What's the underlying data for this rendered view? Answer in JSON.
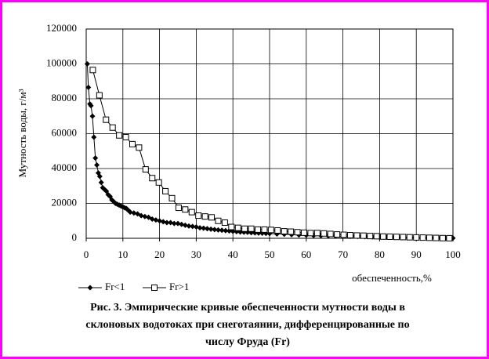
{
  "chart_data": {
    "type": "line",
    "ylabel": "Мутность воды, г/м³",
    "xlabel": "обеспеченность,%",
    "caption": [
      "Рис. 3. Эмпирические кривые обеспеченности мутности воды в",
      "склоновых водотоках при снеготаянии, дифференцированные по",
      "числу Фруда (Fr)"
    ],
    "xlim": [
      0,
      100
    ],
    "xticks": [
      0,
      10,
      20,
      30,
      40,
      50,
      60,
      70,
      80,
      90,
      100
    ],
    "ylim": [
      0,
      120000
    ],
    "yticks": [
      0,
      20000,
      40000,
      60000,
      80000,
      100000,
      120000
    ],
    "grid": true,
    "series": [
      {
        "name": "Fr<1",
        "color": "#000000",
        "marker": "diamond",
        "x": [
          0.3,
          0.6,
          1,
          1.3,
          1.7,
          2.1,
          2.5,
          2.9,
          3.3,
          3.7,
          4.1,
          4.5,
          5,
          5.5,
          6,
          6.5,
          7,
          7.5,
          8,
          8.5,
          9,
          9.5,
          10,
          10.5,
          11,
          11.5,
          12,
          13,
          14,
          15,
          16,
          17,
          18,
          19,
          20,
          21,
          22,
          23,
          24,
          25,
          26,
          27,
          28,
          29,
          30,
          31,
          32,
          33,
          34,
          35,
          36,
          37,
          38,
          39,
          40,
          41,
          42,
          43,
          44,
          45,
          46,
          47,
          48,
          49,
          50,
          52,
          54,
          56,
          58,
          60,
          62,
          64,
          66,
          68,
          70,
          72,
          74,
          76,
          78,
          80,
          82,
          84,
          86,
          88,
          90,
          92,
          94,
          96,
          98,
          100
        ],
        "values": [
          100000,
          86500,
          77000,
          76000,
          70000,
          58000,
          46000,
          42000,
          37500,
          35500,
          32000,
          29000,
          28000,
          27000,
          25000,
          24000,
          22000,
          21000,
          20000,
          19500,
          19000,
          18500,
          18000,
          17500,
          17000,
          16000,
          15000,
          14500,
          14000,
          13000,
          12500,
          12000,
          11000,
          10500,
          10000,
          9500,
          9000,
          9000,
          8500,
          8500,
          8000,
          7500,
          7000,
          6800,
          6500,
          6000,
          5800,
          5500,
          5200,
          5000,
          4800,
          4600,
          4400,
          4200,
          4000,
          3800,
          3600,
          3500,
          3400,
          3200,
          3100,
          3000,
          2900,
          2800,
          2700,
          2500,
          2300,
          2100,
          1900,
          1800,
          1600,
          1500,
          1400,
          1300,
          1200,
          1100,
          1000,
          900,
          800,
          700,
          600,
          500,
          450,
          400,
          350,
          300,
          250,
          200,
          150,
          100
        ]
      },
      {
        "name": "Fr>1",
        "color": "#000000",
        "marker": "square",
        "x": [
          1.8,
          3.6,
          5.4,
          7.2,
          9,
          10.8,
          12.6,
          14.4,
          16.2,
          18,
          19.8,
          21.6,
          23.4,
          25.2,
          27,
          28.8,
          30.6,
          32.4,
          34.2,
          36,
          37.8,
          39.6,
          41.4,
          43.2,
          45,
          46.8,
          48.6,
          50.4,
          52.2,
          54,
          55.8,
          57.6,
          59.4,
          61.2,
          63,
          64.8,
          66.6,
          68.4,
          70.2,
          72,
          73.8,
          75.6,
          77.4,
          79.2,
          81,
          82.8,
          84.6,
          86.4,
          88.2,
          90,
          91.8,
          93.6,
          95.4,
          97.2,
          99
        ],
        "values": [
          96500,
          82000,
          68000,
          63500,
          59000,
          58000,
          54000,
          52000,
          39500,
          34500,
          32000,
          27000,
          23000,
          17500,
          16500,
          15000,
          13000,
          12500,
          12000,
          10000,
          9000,
          6500,
          6000,
          5500,
          5500,
          5000,
          5000,
          4800,
          4500,
          4000,
          3800,
          3500,
          3200,
          3000,
          3000,
          2800,
          2500,
          2200,
          2000,
          1800,
          1600,
          1500,
          1300,
          1200,
          1000,
          900,
          800,
          700,
          600,
          500,
          400,
          300,
          200,
          100,
          50
        ]
      }
    ]
  }
}
